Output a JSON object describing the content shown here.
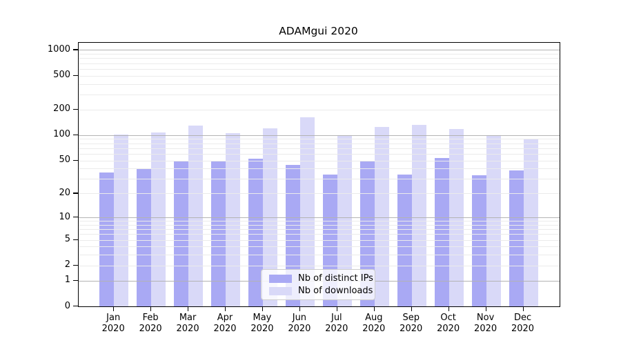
{
  "title": "ADAMgui 2020",
  "colors": {
    "distinct_ips": "#a9a9f4",
    "downloads": "#d9d9f8",
    "grid_major": "#b3b3b3",
    "grid_minor": "#ebebeb",
    "axis": "#000000",
    "legend_border": "#cccccc"
  },
  "legend": {
    "items": [
      {
        "label": "Nb of distinct IPs",
        "color_key": "distinct_ips"
      },
      {
        "label": "Nb of downloads",
        "color_key": "downloads"
      }
    ]
  },
  "chart_data": {
    "type": "bar",
    "title": "ADAMgui 2020",
    "x_months": [
      "Jan",
      "Feb",
      "Mar",
      "Apr",
      "May",
      "Jun",
      "Jul",
      "Aug",
      "Sep",
      "Oct",
      "Nov",
      "Dec"
    ],
    "x_year": "2020",
    "series": [
      {
        "name": "Nb of distinct IPs",
        "color_key": "distinct_ips",
        "values": [
          36,
          40,
          49,
          50,
          52,
          44,
          34,
          49,
          34,
          53,
          33,
          38
        ]
      },
      {
        "name": "Nb of downloads",
        "color_key": "downloads",
        "values": [
          101,
          108,
          130,
          106,
          120,
          163,
          98,
          125,
          131,
          117,
          100,
          89
        ]
      }
    ],
    "y_scale": "log10(value+1)",
    "y_tick_values": [
      0,
      1,
      2,
      5,
      10,
      20,
      50,
      100,
      200,
      500,
      1000
    ],
    "y_major_gridlines": [
      1,
      10,
      100,
      1000
    ],
    "y_minor_gridlines": [
      2,
      3,
      4,
      5,
      6,
      7,
      8,
      9,
      20,
      30,
      40,
      50,
      60,
      70,
      80,
      90,
      200,
      300,
      400,
      500,
      600,
      700,
      800,
      900
    ],
    "grid": true,
    "legend_position": "lower-center-inside"
  }
}
